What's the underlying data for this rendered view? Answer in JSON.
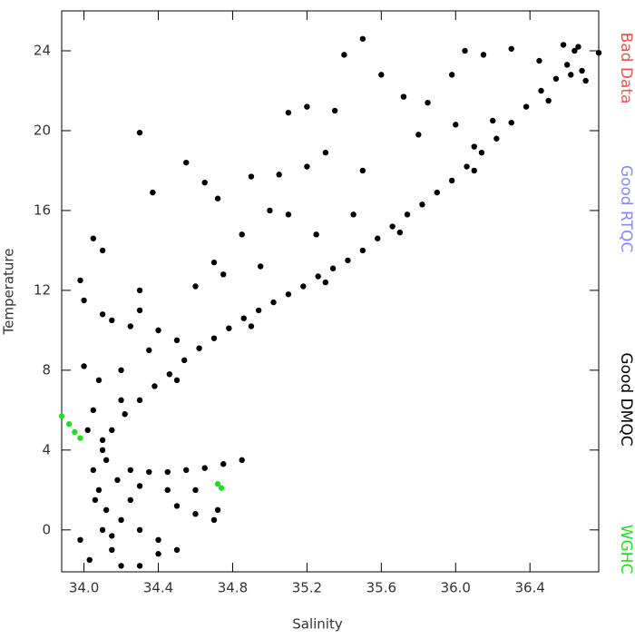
{
  "chart_data": {
    "type": "scatter",
    "x_label": "Salinity",
    "y_label": "Temperature",
    "xlim": [
      33.88,
      36.77
    ],
    "ylim": [
      -2.1,
      26
    ],
    "xticks": [
      {
        "value": 34,
        "label": "34.0"
      },
      {
        "value": 34.4,
        "label": "34.4"
      },
      {
        "value": 34.8,
        "label": "34.8"
      },
      {
        "value": 35.2,
        "label": "35.2"
      },
      {
        "value": 35.6,
        "label": "35.6"
      },
      {
        "value": 36,
        "label": "36.0"
      },
      {
        "value": 36.4,
        "label": "36.4"
      }
    ],
    "yticks": [
      0,
      4,
      8,
      12,
      16,
      20,
      24
    ],
    "series": [
      {
        "name": "Bad Data",
        "color": "#f05050",
        "x": [],
        "values": []
      },
      {
        "name": "Good RTQC",
        "color": "#8888ff",
        "x": [],
        "values": []
      },
      {
        "name": "Good DMQC",
        "color": "#000000",
        "x": [
          34.1,
          34.15,
          34.22,
          34.3,
          34.38,
          34.46,
          34.54,
          34.62,
          34.7,
          34.78,
          34.86,
          34.94,
          35.02,
          35.1,
          35.18,
          35.26,
          35.34,
          35.42,
          35.5,
          35.58,
          35.66,
          35.74,
          35.82,
          35.9,
          35.98,
          36.06,
          36.14,
          36.22,
          36.3,
          36.38,
          36.46,
          36.54,
          36.6,
          36.64,
          36.66,
          36.7,
          36.68,
          34.5,
          34.9,
          35.3,
          35.7,
          36.1,
          36.5,
          34.05,
          34.08,
          34.12,
          34.1,
          34.15,
          34.2,
          34.05,
          34.08,
          34.0,
          34.1,
          34.12,
          34.18,
          34.02,
          34.06,
          33.98,
          34.03,
          34.2,
          34.25,
          34.15,
          34.3,
          34.1,
          34.4,
          34.5,
          34.35,
          34.2,
          34.25,
          34.35,
          34.45,
          34.55,
          34.65,
          34.75,
          34.85,
          34.3,
          34.45,
          34.6,
          34.72,
          34.7,
          34.2,
          34.3,
          34.4,
          34.5,
          34.3,
          34.4,
          34.25,
          34.5,
          34.6,
          34.15,
          34.3,
          34.37,
          34.55,
          34.65,
          34.72,
          34.9,
          35.05,
          35.2,
          35.3,
          35.35,
          35.2,
          35.5,
          35.4,
          35.1,
          35.25,
          34.85,
          34.7,
          34.95,
          35.0,
          35.45,
          35.72,
          35.85,
          35.98,
          36.05,
          36.15,
          36.3,
          36.45,
          36.2,
          36.0,
          35.6,
          35.8,
          34.05,
          34.1,
          33.98,
          34.0,
          34.3,
          34.6,
          34.75,
          35.5,
          35.1,
          36.1,
          36.58,
          36.62,
          36.77
        ],
        "values": [
          4.0,
          5.0,
          5.8,
          6.5,
          7.2,
          7.8,
          8.5,
          9.1,
          9.6,
          10.1,
          10.6,
          11.0,
          11.4,
          11.8,
          12.2,
          12.7,
          13.1,
          13.5,
          14.0,
          14.6,
          15.2,
          15.8,
          16.3,
          16.9,
          17.5,
          18.2,
          18.9,
          19.6,
          20.4,
          21.2,
          22.0,
          22.6,
          23.3,
          24.0,
          24.2,
          22.5,
          23.0,
          7.5,
          10.2,
          12.4,
          14.9,
          18.0,
          21.5,
          3.0,
          2.0,
          1.0,
          0,
          -1,
          -1.8,
          6.0,
          7.5,
          8.2,
          4.5,
          3.5,
          2.5,
          5.0,
          1.5,
          -0.5,
          -1.5,
          8.0,
          10.2,
          10.5,
          11.0,
          10.8,
          10.0,
          9.5,
          9.0,
          6.5,
          3.0,
          2.9,
          2.9,
          3.0,
          3.1,
          3.3,
          3.5,
          2.2,
          2.0,
          2.0,
          1.0,
          0.5,
          0.5,
          0,
          -0.5,
          -1,
          -1.8,
          -1.2,
          1.5,
          1.2,
          0.8,
          -0.3,
          19.9,
          16.9,
          18.4,
          17.4,
          16.6,
          17.7,
          17.8,
          18.2,
          18.9,
          21.0,
          21.2,
          24.6,
          23.8,
          15.8,
          14.8,
          14.8,
          13.4,
          13.2,
          16.0,
          15.8,
          21.7,
          21.4,
          22.8,
          24.0,
          23.8,
          24.1,
          23.5,
          20.5,
          20.3,
          22.8,
          19.8,
          14.6,
          14.0,
          12.5,
          11.5,
          12.0,
          12.2,
          12.8,
          18.0,
          20.9,
          19.2,
          24.3,
          22.8,
          23.9
        ]
      },
      {
        "name": "WGHC",
        "color": "#22dd22",
        "x": [
          33.88,
          33.92,
          33.95,
          33.98,
          34.74,
          34.72
        ],
        "values": [
          5.7,
          5.3,
          4.9,
          4.6,
          2.1,
          2.3
        ]
      }
    ]
  }
}
